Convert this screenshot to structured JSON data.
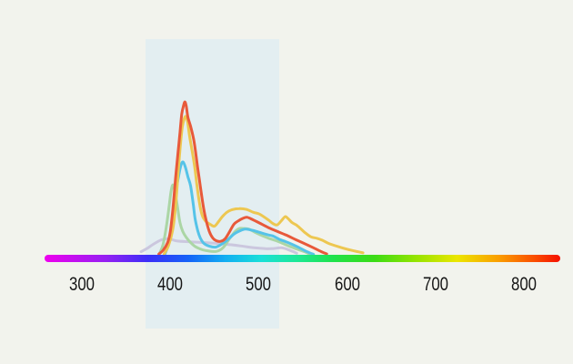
{
  "background_color": "#f2f3ed",
  "chart_data": {
    "type": "line",
    "title": "",
    "x_axis": {
      "min": 300,
      "max": 800,
      "ticks": [
        "300",
        "400",
        "500",
        "600",
        "700",
        "800"
      ],
      "tick_color": "#161616"
    },
    "y_axis": {
      "visible": false,
      "intensity_range": [
        0,
        1
      ]
    },
    "highlight_band": {
      "from_nm": 372,
      "to_nm": 523,
      "color": "#e3eef1"
    },
    "spectrum_axis_bar": {
      "gradient_stops": [
        {
          "pos": 0.0,
          "color": "#ee00ee"
        },
        {
          "pos": 0.12,
          "color": "#9420f2"
        },
        {
          "pos": 0.2,
          "color": "#3b2df8"
        },
        {
          "pos": 0.28,
          "color": "#1464f8"
        },
        {
          "pos": 0.35,
          "color": "#12aef2"
        },
        {
          "pos": 0.42,
          "color": "#19e0d8"
        },
        {
          "pos": 0.49,
          "color": "#1ee895"
        },
        {
          "pos": 0.56,
          "color": "#1fe24c"
        },
        {
          "pos": 0.64,
          "color": "#3cdc16"
        },
        {
          "pos": 0.72,
          "color": "#95e400"
        },
        {
          "pos": 0.8,
          "color": "#ece600"
        },
        {
          "pos": 0.88,
          "color": "#fa9e00"
        },
        {
          "pos": 0.95,
          "color": "#fa4e00"
        },
        {
          "pos": 1.0,
          "color": "#f51000"
        }
      ]
    },
    "series": [
      {
        "name": "lavender",
        "color": "#cbc7de",
        "points": [
          [
            367,
            0.02
          ],
          [
            374,
            0.042
          ],
          [
            380,
            0.066
          ],
          [
            390,
            0.098
          ],
          [
            398,
            0.105
          ],
          [
            408,
            0.09
          ],
          [
            423,
            0.085
          ],
          [
            444,
            0.078
          ],
          [
            465,
            0.068
          ],
          [
            480,
            0.058
          ],
          [
            495,
            0.046
          ],
          [
            508,
            0.04
          ],
          [
            517,
            0.041
          ],
          [
            526,
            0.046
          ],
          [
            536,
            0.028
          ],
          [
            543,
            0.01
          ]
        ]
      },
      {
        "name": "green",
        "color": "#abd6a5",
        "points": [
          [
            388,
            0.01
          ],
          [
            392,
            0.07
          ],
          [
            396,
            0.2
          ],
          [
            399,
            0.33
          ],
          [
            401,
            0.42
          ],
          [
            403,
            0.458
          ],
          [
            405,
            0.42
          ],
          [
            408,
            0.32
          ],
          [
            411,
            0.21
          ],
          [
            414,
            0.155
          ],
          [
            418,
            0.115
          ],
          [
            423,
            0.08
          ],
          [
            428,
            0.055
          ],
          [
            434,
            0.038
          ],
          [
            440,
            0.028
          ],
          [
            452,
            0.022
          ],
          [
            460,
            0.048
          ],
          [
            467,
            0.105
          ],
          [
            473,
            0.15
          ],
          [
            478,
            0.172
          ],
          [
            483,
            0.172
          ],
          [
            489,
            0.168
          ],
          [
            495,
            0.15
          ],
          [
            501,
            0.133
          ],
          [
            511,
            0.109
          ],
          [
            521,
            0.089
          ],
          [
            531,
            0.065
          ],
          [
            542,
            0.04
          ],
          [
            552,
            0.02
          ],
          [
            557,
            0.006
          ]
        ]
      },
      {
        "name": "cyan",
        "color": "#55c3e8",
        "points": [
          [
            394,
            0.005
          ],
          [
            399,
            0.09
          ],
          [
            403,
            0.24
          ],
          [
            406,
            0.4
          ],
          [
            409,
            0.5
          ],
          [
            412,
            0.585
          ],
          [
            414.5,
            0.607
          ],
          [
            417,
            0.575
          ],
          [
            420,
            0.51
          ],
          [
            423,
            0.45
          ],
          [
            426,
            0.33
          ],
          [
            428,
            0.24
          ],
          [
            431,
            0.16
          ],
          [
            434,
            0.11
          ],
          [
            438,
            0.075
          ],
          [
            444,
            0.057
          ],
          [
            452,
            0.051
          ],
          [
            462,
            0.085
          ],
          [
            472,
            0.135
          ],
          [
            478,
            0.155
          ],
          [
            485,
            0.168
          ],
          [
            493,
            0.16
          ],
          [
            500,
            0.148
          ],
          [
            511,
            0.13
          ],
          [
            516,
            0.123
          ],
          [
            524,
            0.1
          ],
          [
            531,
            0.085
          ],
          [
            542,
            0.058
          ],
          [
            552,
            0.028
          ],
          [
            558,
            0.012
          ],
          [
            562,
            0.003
          ]
        ]
      },
      {
        "name": "yellow",
        "color": "#edc751",
        "points": [
          [
            393,
            0.005
          ],
          [
            398,
            0.06
          ],
          [
            403,
            0.17
          ],
          [
            406,
            0.32
          ],
          [
            409,
            0.54
          ],
          [
            411.5,
            0.72
          ],
          [
            413.5,
            0.83
          ],
          [
            415.5,
            0.885
          ],
          [
            417.5,
            0.905
          ],
          [
            419.5,
            0.87
          ],
          [
            422,
            0.77
          ],
          [
            425,
            0.67
          ],
          [
            428,
            0.56
          ],
          [
            430,
            0.46
          ],
          [
            433,
            0.34
          ],
          [
            436,
            0.26
          ],
          [
            440,
            0.22
          ],
          [
            445,
            0.2
          ],
          [
            450,
            0.187
          ],
          [
            455,
            0.22
          ],
          [
            459,
            0.25
          ],
          [
            464,
            0.278
          ],
          [
            470,
            0.295
          ],
          [
            478,
            0.302
          ],
          [
            486,
            0.297
          ],
          [
            494,
            0.278
          ],
          [
            501,
            0.266
          ],
          [
            511,
            0.228
          ],
          [
            516,
            0.205
          ],
          [
            521,
            0.196
          ],
          [
            526,
            0.225
          ],
          [
            530,
            0.25
          ],
          [
            533,
            0.238
          ],
          [
            538,
            0.21
          ],
          [
            543,
            0.193
          ],
          [
            548,
            0.168
          ],
          [
            552,
            0.147
          ],
          [
            559,
            0.118
          ],
          [
            566,
            0.108
          ],
          [
            572,
            0.095
          ],
          [
            580,
            0.072
          ],
          [
            593,
            0.048
          ],
          [
            603,
            0.032
          ],
          [
            612,
            0.02
          ],
          [
            618,
            0.013
          ]
        ]
      },
      {
        "name": "red",
        "color": "#e8593a",
        "points": [
          [
            387,
            0.005
          ],
          [
            392,
            0.03
          ],
          [
            397,
            0.08
          ],
          [
            400,
            0.15
          ],
          [
            403,
            0.3
          ],
          [
            406,
            0.5
          ],
          [
            409,
            0.68
          ],
          [
            411,
            0.8
          ],
          [
            413,
            0.92
          ],
          [
            415,
            0.975
          ],
          [
            416.5,
            1.0
          ],
          [
            418,
            0.975
          ],
          [
            420,
            0.9
          ],
          [
            423,
            0.84
          ],
          [
            427,
            0.74
          ],
          [
            431,
            0.57
          ],
          [
            434,
            0.45
          ],
          [
            437,
            0.33
          ],
          [
            440,
            0.24
          ],
          [
            444,
            0.155
          ],
          [
            448,
            0.11
          ],
          [
            452,
            0.092
          ],
          [
            457,
            0.088
          ],
          [
            462,
            0.105
          ],
          [
            467,
            0.15
          ],
          [
            472,
            0.2
          ],
          [
            477,
            0.222
          ],
          [
            482,
            0.238
          ],
          [
            487,
            0.245
          ],
          [
            494,
            0.228
          ],
          [
            501,
            0.208
          ],
          [
            511,
            0.178
          ],
          [
            521,
            0.153
          ],
          [
            531,
            0.129
          ],
          [
            542,
            0.099
          ],
          [
            552,
            0.073
          ],
          [
            562,
            0.046
          ],
          [
            571,
            0.02
          ],
          [
            577,
            0.006
          ]
        ]
      }
    ]
  }
}
